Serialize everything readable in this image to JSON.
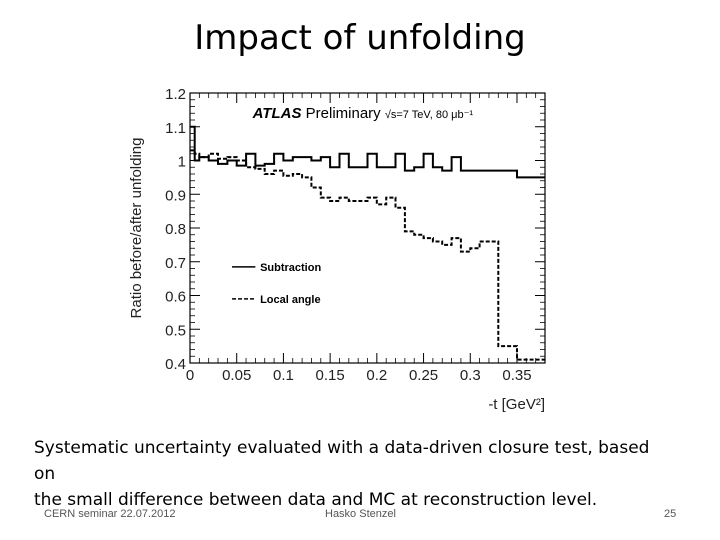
{
  "slide": {
    "title": "Impact of unfolding",
    "caption_line1": "Systematic uncertainty evaluated with a data-driven closure test, based on",
    "caption_line2": "the small difference between data and MC at reconstruction level.",
    "footer_left": "CERN seminar 22.07.2012",
    "footer_center": "Hasko Stenzel",
    "page_number": "25"
  },
  "chart_data": {
    "type": "line",
    "title": "",
    "annotation_brand": "ATLAS",
    "annotation_status": "Preliminary",
    "annotation_energy": "√s=7 TeV, 80 μb⁻¹",
    "xlabel": "-t [GeV²]",
    "ylabel": "Ratio before/after unfolding",
    "xlim": [
      0,
      0.38
    ],
    "ylim": [
      0.4,
      1.2
    ],
    "x_ticks": [
      "0",
      "0.05",
      "0.1",
      "0.15",
      "0.2",
      "0.25",
      "0.3",
      "0.35"
    ],
    "y_ticks": [
      "0.4",
      "0.5",
      "0.6",
      "0.7",
      "0.8",
      "0.9",
      "1",
      "1.1",
      "1.2"
    ],
    "grid": false,
    "legend_position": "center-left",
    "series": [
      {
        "name": "Subtraction",
        "style": "solid",
        "color": "#000000",
        "bin_edges": [
          0,
          0.005,
          0.01,
          0.02,
          0.03,
          0.04,
          0.05,
          0.06,
          0.07,
          0.08,
          0.09,
          0.1,
          0.11,
          0.12,
          0.13,
          0.14,
          0.15,
          0.16,
          0.17,
          0.18,
          0.19,
          0.2,
          0.21,
          0.22,
          0.23,
          0.24,
          0.25,
          0.26,
          0.27,
          0.28,
          0.29,
          0.3,
          0.31,
          0.35,
          0.38
        ],
        "values": [
          1.1,
          1.0,
          1.01,
          1.0,
          0.99,
          1.0,
          0.985,
          1.02,
          0.985,
          0.99,
          1.02,
          1.0,
          1.01,
          1.01,
          1.0,
          1.01,
          0.98,
          1.02,
          0.98,
          0.98,
          1.02,
          0.98,
          0.98,
          1.02,
          0.97,
          0.98,
          1.02,
          0.98,
          0.97,
          1.01,
          0.97,
          0.97,
          0.97,
          0.95
        ]
      },
      {
        "name": "Local angle",
        "style": "dashed",
        "color": "#000000",
        "bin_edges": [
          0,
          0.005,
          0.01,
          0.02,
          0.03,
          0.04,
          0.05,
          0.06,
          0.07,
          0.08,
          0.09,
          0.1,
          0.11,
          0.12,
          0.13,
          0.14,
          0.15,
          0.16,
          0.17,
          0.18,
          0.19,
          0.2,
          0.21,
          0.22,
          0.23,
          0.24,
          0.25,
          0.26,
          0.27,
          0.28,
          0.29,
          0.3,
          0.31,
          0.33,
          0.35,
          0.38
        ],
        "values": [
          1.03,
          1.02,
          1.01,
          1.02,
          1.005,
          1.01,
          1.0,
          0.98,
          0.975,
          0.96,
          0.97,
          0.955,
          0.96,
          0.95,
          0.92,
          0.89,
          0.88,
          0.89,
          0.88,
          0.88,
          0.89,
          0.87,
          0.89,
          0.86,
          0.79,
          0.78,
          0.77,
          0.76,
          0.75,
          0.77,
          0.73,
          0.74,
          0.76,
          0.45,
          0.41
        ]
      }
    ]
  }
}
